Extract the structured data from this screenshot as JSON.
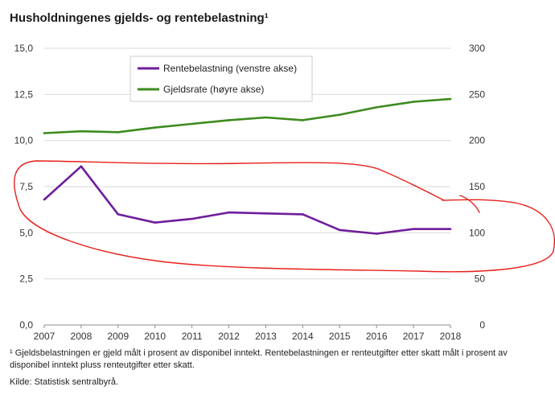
{
  "title": "Husholdningenes gjelds- og rentebelastning¹",
  "footnote": "¹ Gjeldsbelastningen er gjeld målt i prosent av disponibel inntekt. Rentebelastningen er renteutgifter etter skatt målt i prosent av disponibel inntekt pluss renteutgifter etter skatt.",
  "source": "Kilde: Statistisk sentralbyrå.",
  "colors": {
    "interest_line": "#6f1d9b",
    "debt_line": "#3d8b1f",
    "grid": "#d9d9d9",
    "annotation": "#e8201a"
  },
  "chart_data": {
    "type": "line",
    "x": [
      "2007",
      "2008",
      "2009",
      "2010",
      "2011",
      "2012",
      "2013",
      "2014",
      "2015",
      "2016",
      "2017",
      "2018"
    ],
    "series": [
      {
        "name": "Rentebelastning (venstre akse)",
        "axis": "left",
        "values": [
          6.8,
          8.6,
          6.0,
          5.55,
          5.75,
          6.1,
          6.05,
          6.0,
          5.15,
          4.95,
          5.2,
          5.2
        ]
      },
      {
        "name": "Gjeldsrate (høyre akse)",
        "axis": "right",
        "values": [
          208,
          210,
          209,
          214,
          218,
          222,
          225,
          222,
          228,
          236,
          242,
          245
        ]
      }
    ],
    "left_axis": {
      "ylim": [
        0,
        15
      ],
      "ticks": [
        "0,0",
        "2,5",
        "5,0",
        "7,5",
        "10,0",
        "12,5",
        "15,0"
      ]
    },
    "right_axis": {
      "ylim": [
        0,
        300
      ],
      "ticks": [
        "0",
        "50",
        "100",
        "150",
        "200",
        "250",
        "300"
      ]
    },
    "grid": true,
    "legend_position": "top-center",
    "annotation": "red hand-drawn loop around the Rentebelastning line"
  }
}
